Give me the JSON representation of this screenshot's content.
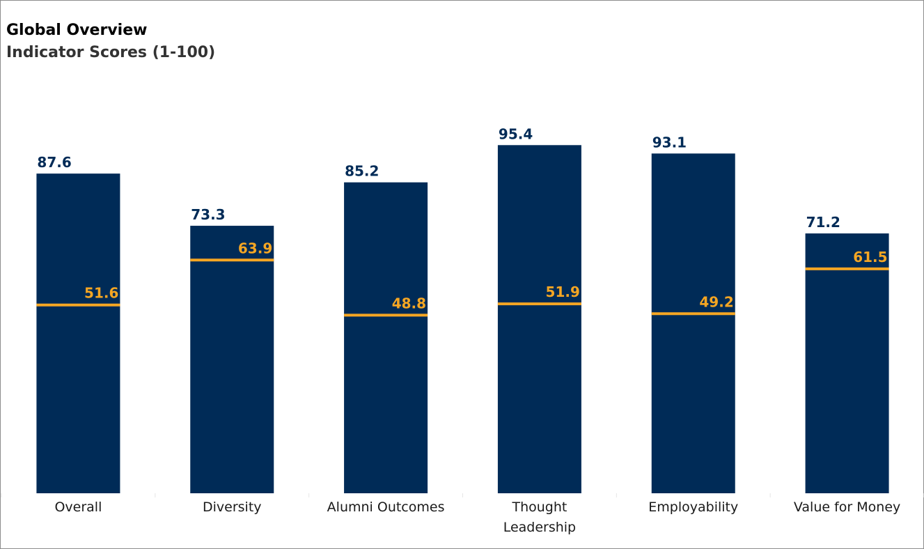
{
  "header": {
    "title": "Global Overview",
    "subtitle": "Indicator Scores (1-100)"
  },
  "colors": {
    "bar": "#002b57",
    "benchmark": "#f5a623",
    "bar_label": "#002b57",
    "benchmark_label": "#f5a623"
  },
  "chart_data": {
    "type": "bar",
    "title": "Global Overview",
    "subtitle": "Indicator Scores (1-100)",
    "categories": [
      "Overall",
      "Diversity",
      "Alumni Outcomes",
      "Thought Leadership",
      "Employability",
      "Value for Money"
    ],
    "series": [
      {
        "values": [
          87.6,
          73.3,
          85.2,
          95.4,
          93.1,
          71.2
        ]
      },
      {
        "values": [
          51.6,
          63.9,
          48.8,
          51.9,
          49.2,
          61.5
        ],
        "style": "marker line"
      }
    ],
    "ylim": [
      0,
      100
    ],
    "grid": false,
    "legend": "none"
  }
}
